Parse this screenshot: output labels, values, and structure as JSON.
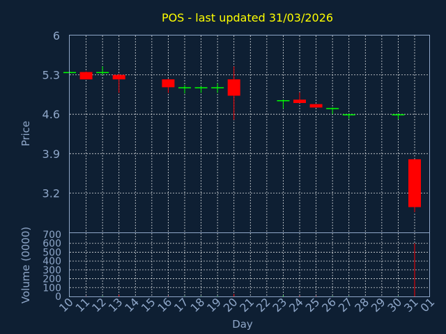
{
  "chart_data": {
    "type": "candlestick",
    "title": "POS - last updated 31/03/2026",
    "xlabel": "Day",
    "ylabel": "Price",
    "volume_label": "Volume (0000)",
    "categories": [
      "10",
      "11",
      "12",
      "13",
      "14",
      "15",
      "16",
      "17",
      "18",
      "19",
      "20",
      "21",
      "22",
      "23",
      "24",
      "25",
      "26",
      "27",
      "28",
      "29",
      "30",
      "31",
      "01"
    ],
    "price_ylim": [
      2.5,
      6
    ],
    "price_ticks": [
      "6",
      "5.3",
      "4.6",
      "3.9",
      "3.2"
    ],
    "price_tick_values": [
      6,
      5.3,
      4.6,
      3.9,
      3.2
    ],
    "volume_ylim": [
      0,
      700
    ],
    "volume_ticks": [
      "700",
      "600",
      "500",
      "400",
      "300",
      "200",
      "100",
      "0"
    ],
    "volume_tick_values": [
      700,
      600,
      500,
      400,
      300,
      200,
      100,
      0
    ],
    "grid": true,
    "colors": {
      "up": "#00ff00",
      "down": "#ff0000",
      "title": "#ffff00",
      "axis": "#8fa7c9",
      "background": "#0e1f33"
    },
    "candles": [
      {
        "day": "10",
        "open": 5.35,
        "high": 5.36,
        "low": 5.34,
        "close": 5.35,
        "volume": 2
      },
      {
        "day": "11",
        "open": 5.35,
        "high": 5.36,
        "low": 5.22,
        "close": 5.22,
        "volume": 3
      },
      {
        "day": "12",
        "open": 5.35,
        "high": 5.45,
        "low": 5.3,
        "close": 5.35,
        "volume": 4
      },
      {
        "day": "13",
        "open": 5.3,
        "high": 5.32,
        "low": 4.98,
        "close": 5.22,
        "volume": 18
      },
      {
        "day": "16",
        "open": 5.22,
        "high": 5.23,
        "low": 4.98,
        "close": 5.08,
        "volume": 5
      },
      {
        "day": "17",
        "open": 5.08,
        "high": 5.12,
        "low": 4.97,
        "close": 5.08,
        "volume": 3
      },
      {
        "day": "18",
        "open": 5.08,
        "high": 5.1,
        "low": 4.98,
        "close": 5.08,
        "volume": 3
      },
      {
        "day": "19",
        "open": 5.08,
        "high": 5.15,
        "low": 4.98,
        "close": 5.08,
        "volume": 4
      },
      {
        "day": "20",
        "open": 5.22,
        "high": 5.45,
        "low": 4.5,
        "close": 4.93,
        "volume": 28
      },
      {
        "day": "23",
        "open": 4.85,
        "high": 4.86,
        "low": 4.7,
        "close": 4.85,
        "volume": 10
      },
      {
        "day": "24",
        "open": 4.86,
        "high": 4.99,
        "low": 4.8,
        "close": 4.8,
        "volume": 8
      },
      {
        "day": "25",
        "open": 4.78,
        "high": 4.78,
        "low": 4.72,
        "close": 4.72,
        "volume": 6
      },
      {
        "day": "26",
        "open": 4.71,
        "high": 4.72,
        "low": 4.6,
        "close": 4.71,
        "volume": 4
      },
      {
        "day": "27",
        "open": 4.6,
        "high": 4.61,
        "low": 4.52,
        "close": 4.6,
        "volume": 3
      },
      {
        "day": "30",
        "open": 4.6,
        "high": 4.61,
        "low": 4.51,
        "close": 4.6,
        "volume": 3
      },
      {
        "day": "31",
        "open": 3.8,
        "high": 3.8,
        "low": 2.86,
        "close": 2.95,
        "volume": 600
      }
    ]
  }
}
